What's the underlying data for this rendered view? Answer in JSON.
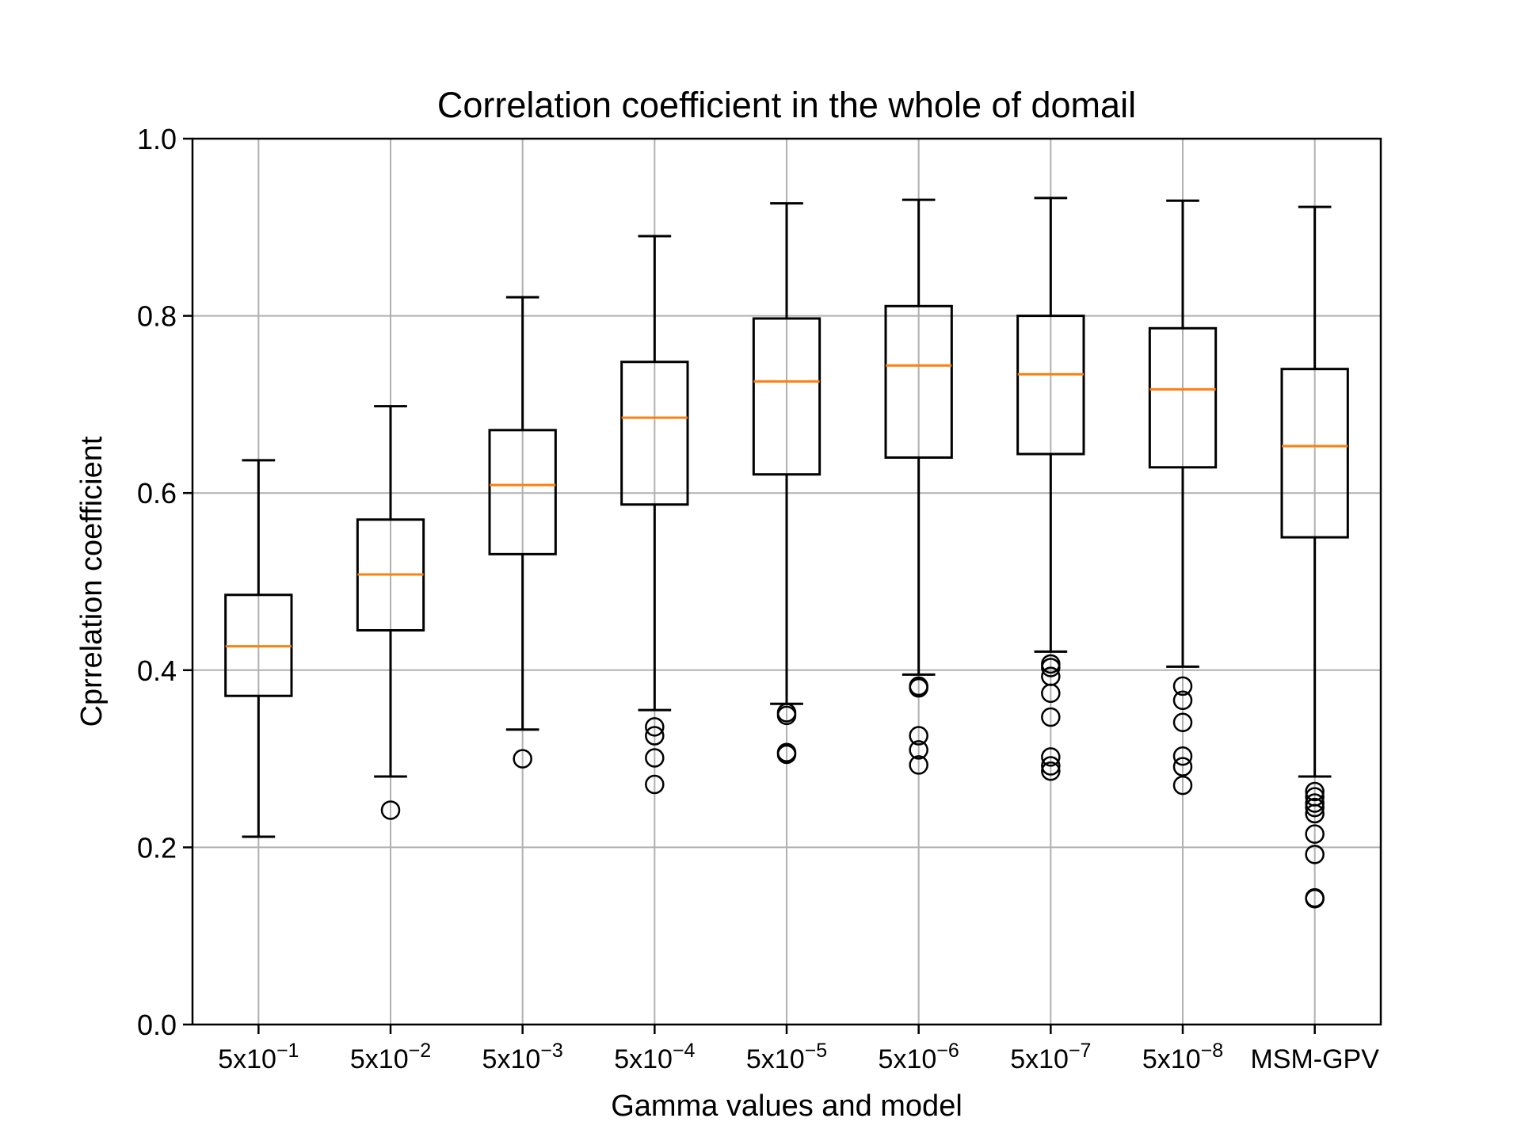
{
  "chart_data": {
    "type": "box",
    "title": "Correlation coefficient in the whole of domail",
    "xlabel": "Gamma values and model",
    "ylabel": "Cprrelation coefficient",
    "ylim": [
      0.0,
      1.0
    ],
    "yticks": [
      "0.0",
      "0.2",
      "0.4",
      "0.6",
      "0.8",
      "1.0"
    ],
    "grid": true,
    "categories": [
      {
        "base": "5x10",
        "exp": "−1"
      },
      {
        "base": "5x10",
        "exp": "−2"
      },
      {
        "base": "5x10",
        "exp": "−3"
      },
      {
        "base": "5x10",
        "exp": "−4"
      },
      {
        "base": "5x10",
        "exp": "−5"
      },
      {
        "base": "5x10",
        "exp": "−6"
      },
      {
        "base": "5x10",
        "exp": "−7"
      },
      {
        "base": "5x10",
        "exp": "−8"
      },
      {
        "base": "MSM-GPV",
        "exp": ""
      }
    ],
    "boxes": [
      {
        "whisker_low": 0.212,
        "q1": 0.371,
        "median": 0.427,
        "q3": 0.485,
        "whisker_high": 0.637,
        "outliers": []
      },
      {
        "whisker_low": 0.28,
        "q1": 0.445,
        "median": 0.508,
        "q3": 0.57,
        "whisker_high": 0.698,
        "outliers": [
          0.242
        ]
      },
      {
        "whisker_low": 0.333,
        "q1": 0.531,
        "median": 0.609,
        "q3": 0.671,
        "whisker_high": 0.821,
        "outliers": [
          0.3
        ]
      },
      {
        "whisker_low": 0.355,
        "q1": 0.587,
        "median": 0.685,
        "q3": 0.748,
        "whisker_high": 0.89,
        "outliers": [
          0.336,
          0.326,
          0.301,
          0.271
        ]
      },
      {
        "whisker_low": 0.362,
        "q1": 0.621,
        "median": 0.726,
        "q3": 0.797,
        "whisker_high": 0.927,
        "outliers": [
          0.352,
          0.349,
          0.307,
          0.305
        ]
      },
      {
        "whisker_low": 0.395,
        "q1": 0.64,
        "median": 0.744,
        "q3": 0.811,
        "whisker_high": 0.931,
        "outliers": [
          0.382,
          0.38,
          0.326,
          0.31,
          0.293
        ]
      },
      {
        "whisker_low": 0.421,
        "q1": 0.644,
        "median": 0.734,
        "q3": 0.8,
        "whisker_high": 0.933,
        "outliers": [
          0.407,
          0.403,
          0.393,
          0.374,
          0.347,
          0.302,
          0.292,
          0.286
        ]
      },
      {
        "whisker_low": 0.404,
        "q1": 0.629,
        "median": 0.717,
        "q3": 0.786,
        "whisker_high": 0.93,
        "outliers": [
          0.382,
          0.366,
          0.341,
          0.303,
          0.291,
          0.27
        ]
      },
      {
        "whisker_low": 0.28,
        "q1": 0.55,
        "median": 0.653,
        "q3": 0.74,
        "whisker_high": 0.923,
        "outliers": [
          0.263,
          0.257,
          0.25,
          0.245,
          0.238,
          0.215,
          0.192,
          0.143,
          0.142
        ]
      }
    ],
    "colors": {
      "box": "#000000",
      "median": "#ff7f0e",
      "grid": "#b0b0b0",
      "background": "#ffffff"
    }
  }
}
